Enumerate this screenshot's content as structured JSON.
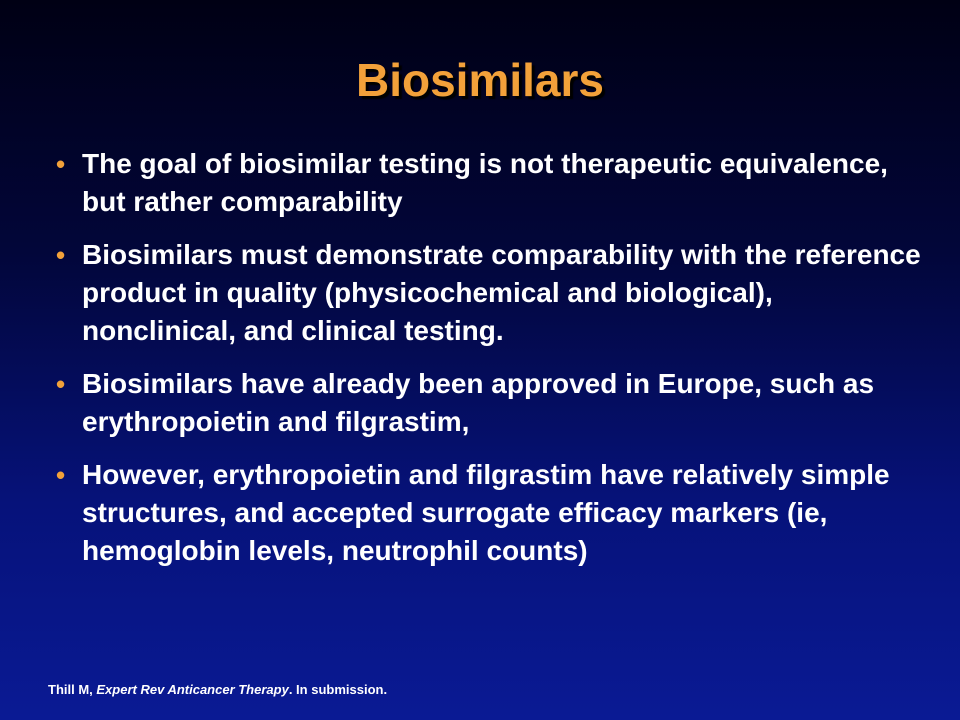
{
  "slide": {
    "title": "Biosimilars",
    "bullets": [
      {
        "text": "The goal of biosimilar testing is not therapeutic equivalence, but rather comparability"
      },
      {
        "text": "Biosimilars must demonstrate comparability with the reference product in quality (physicochemical and biological), nonclinical, and clinical testing."
      },
      {
        "text": "Biosimilars have already been approved in Europe, such as erythropoietin and filgrastim,"
      },
      {
        "text": "However, erythropoietin and filgrastim have relatively simple structures, and accepted surrogate efficacy markers (ie, hemoglobin levels, neutrophil counts)"
      }
    ],
    "bullet_glyph": "•",
    "footer": {
      "author": "Thill M, ",
      "journal": "Expert Rev Anticancer Therapy",
      "suffix": ". In submission."
    }
  },
  "colors": {
    "title": "#f2a13a",
    "bullet_marker": "#f2a13a",
    "text": "#ffffff",
    "background_top": "#000014",
    "background_bottom": "#0a1a94"
  }
}
